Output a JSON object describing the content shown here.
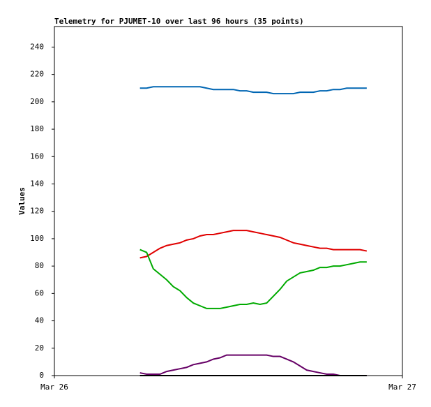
{
  "chart_data": {
    "type": "line",
    "title": "Telemetry for PJUMET-10 over last 96 hours (35 points)",
    "y_label": "Values",
    "x": [
      5.9,
      6.36,
      6.82,
      7.28,
      7.74,
      8.2,
      8.66,
      9.12,
      9.58,
      10.04,
      10.5,
      10.96,
      11.42,
      11.88,
      12.34,
      12.8,
      13.26,
      13.72,
      14.18,
      14.64,
      15.1,
      15.56,
      16.02,
      16.48,
      16.94,
      17.4,
      17.86,
      18.32,
      18.78,
      19.24,
      19.7,
      20.16,
      20.62,
      21.08,
      21.54
    ],
    "xlim": [
      0,
      24
    ],
    "xticks": [
      {
        "value": 0,
        "label": "Mar 26"
      },
      {
        "value": 24,
        "label": "Mar 27"
      }
    ],
    "ylim": [
      0,
      255
    ],
    "yticks": [
      0,
      20,
      40,
      60,
      80,
      100,
      120,
      140,
      160,
      180,
      200,
      220,
      240
    ],
    "series": [
      {
        "color": "#0066b3",
        "values": [
          210,
          210,
          211,
          211,
          211,
          211,
          211,
          211,
          211,
          211,
          210,
          209,
          209,
          209,
          209,
          208,
          208,
          207,
          207,
          207,
          206,
          206,
          206,
          206,
          207,
          207,
          207,
          208,
          208,
          209,
          209,
          210,
          210,
          210,
          210
        ]
      },
      {
        "color": "#e00000",
        "values": [
          86,
          87,
          90,
          93,
          95,
          96,
          97,
          99,
          100,
          102,
          103,
          103,
          104,
          105,
          106,
          106,
          106,
          105,
          104,
          103,
          102,
          101,
          99,
          97,
          96,
          95,
          94,
          93,
          93,
          92,
          92,
          92,
          92,
          92,
          91
        ]
      },
      {
        "color": "#00aa00",
        "values": [
          92,
          90,
          78,
          74,
          70,
          65,
          62,
          57,
          53,
          51,
          49,
          49,
          49,
          50,
          51,
          52,
          52,
          53,
          52,
          53,
          58,
          63,
          69,
          72,
          75,
          76,
          77,
          79,
          79,
          80,
          80,
          81,
          82,
          83,
          83
        ]
      },
      {
        "color": "#660066",
        "values": [
          2,
          1,
          1,
          1,
          3,
          4,
          5,
          6,
          8,
          9,
          10,
          12,
          13,
          15,
          15,
          15,
          15,
          15,
          15,
          15,
          14,
          14,
          12,
          10,
          7,
          4,
          3,
          2,
          1,
          1,
          0,
          0,
          0,
          0,
          0
        ]
      },
      {
        "color": "#000000",
        "values": [
          0,
          0,
          0,
          0,
          0,
          0,
          0,
          0,
          0,
          0,
          0,
          0,
          0,
          0,
          0,
          0,
          0,
          0,
          0,
          0,
          0,
          0,
          0,
          0,
          0,
          0,
          0,
          0,
          0,
          0,
          0,
          0,
          0,
          0,
          0
        ]
      }
    ]
  }
}
